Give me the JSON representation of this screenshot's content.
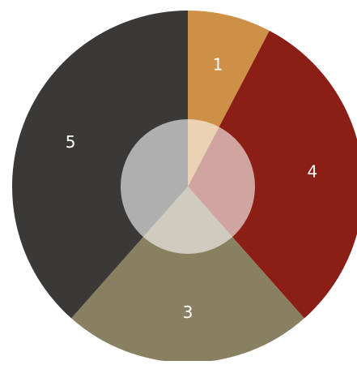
{
  "chart_data": {
    "type": "pie",
    "slices": [
      {
        "label": "1",
        "value": 1,
        "color": "#CE9047"
      },
      {
        "label": "4",
        "value": 4,
        "color": "#8B1E15"
      },
      {
        "label": "3",
        "value": 3,
        "color": "#888060"
      },
      {
        "label": "5",
        "value": 5,
        "color": "#3A3937"
      }
    ],
    "center_overlay": {
      "color": "#FFFFFF",
      "opacity": 0.6
    }
  }
}
